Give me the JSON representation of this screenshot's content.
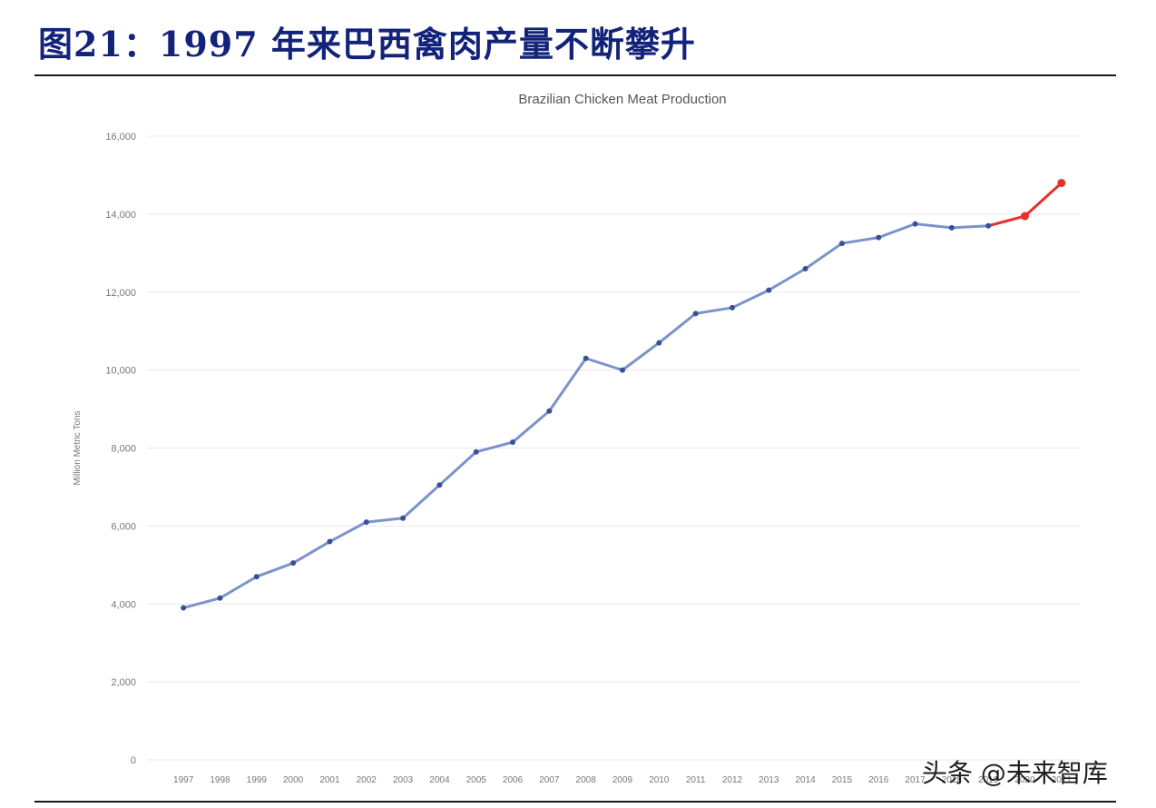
{
  "figure_title": "图21：1997 年来巴西禽肉产量不断攀升",
  "watermark": "头条 @未来智库",
  "chart_data": {
    "type": "line",
    "title": "Brazilian Chicken Meat Production",
    "xlabel": "",
    "ylabel": "Million Metric Tons",
    "ylim": [
      0,
      16000
    ],
    "yticks": [
      0,
      2000,
      4000,
      6000,
      8000,
      10000,
      12000,
      14000,
      16000
    ],
    "ytick_labels": [
      "0",
      "2,000",
      "4,000",
      "6,000",
      "8,000",
      "10,000",
      "12,000",
      "14,000",
      "16,000"
    ],
    "categories": [
      "1997",
      "1998",
      "1999",
      "2000",
      "2001",
      "2002",
      "2003",
      "2004",
      "2005",
      "2006",
      "2007",
      "2008",
      "2009",
      "2010",
      "2011",
      "2012",
      "2013",
      "2014",
      "2015",
      "2016",
      "2017",
      "2018",
      "2019",
      "2020",
      "2021"
    ],
    "values": [
      3900,
      4150,
      4700,
      5050,
      5600,
      6100,
      6200,
      7050,
      7900,
      8150,
      8950,
      10300,
      10000,
      10700,
      11450,
      11600,
      12050,
      12600,
      13250,
      13400,
      13750,
      13650,
      13700,
      13950,
      14800
    ],
    "projection_start_index": 22,
    "grid": true,
    "legend": "none",
    "colors": {
      "line": "#7c93c9",
      "marker": "#3a4f9a",
      "projection": "#e4322b",
      "grid": "#e8e8ee"
    }
  }
}
